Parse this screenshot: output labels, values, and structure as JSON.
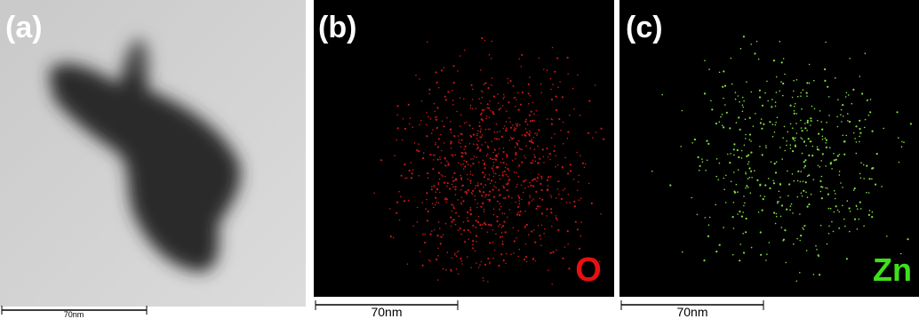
{
  "panels": [
    {
      "label": "(a)",
      "scale_bar": "70nm"
    },
    {
      "label": "(b)",
      "scale_bar": "70nm",
      "element": "O"
    },
    {
      "label": "(c)",
      "scale_bar": "70nm",
      "element": "Zn"
    }
  ]
}
